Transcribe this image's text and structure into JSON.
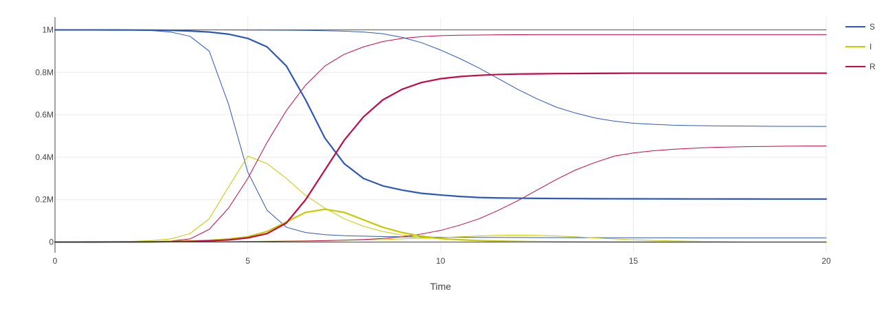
{
  "chart_data": {
    "type": "line",
    "xlabel": "Time",
    "ylabel": "",
    "xlim": [
      0,
      20
    ],
    "ylim": [
      -50000,
      1060000
    ],
    "xticks": [
      0,
      5,
      10,
      15,
      20
    ],
    "xtick_labels": [
      "0",
      "5",
      "10",
      "15",
      "20"
    ],
    "yticks": [
      0,
      200000,
      400000,
      600000,
      800000,
      1000000
    ],
    "ytick_labels": [
      "0",
      "0.2M",
      "0.4M",
      "0.6M",
      "0.8M",
      "1M"
    ],
    "grid": true,
    "legend_position": "top-right",
    "legend": [
      {
        "label": "S",
        "color": "#2c57b3"
      },
      {
        "label": "I",
        "color": "#c8c800"
      },
      {
        "label": "R",
        "color": "#c10a44"
      }
    ],
    "x": [
      0,
      0.5,
      1,
      1.5,
      2,
      2.5,
      3,
      3.5,
      4,
      4.5,
      5,
      5.5,
      6,
      6.5,
      7,
      7.5,
      8,
      8.5,
      9,
      9.5,
      10,
      10.5,
      11,
      11.5,
      12,
      12.5,
      13,
      13.5,
      14,
      14.5,
      15,
      15.5,
      16,
      16.5,
      17,
      17.5,
      18,
      18.5,
      19,
      19.5,
      20
    ],
    "series": [
      {
        "group": "S",
        "color": "#2c57b3",
        "weight": "thin",
        "values": [
          1000000,
          1000000,
          999800,
          999300,
          998500,
          997000,
          990000,
          970000,
          900000,
          650000,
          330000,
          150000,
          70000,
          45000,
          35000,
          30000,
          28000,
          26000,
          25000,
          24000,
          23000,
          22500,
          22000,
          21800,
          21500,
          21300,
          21000,
          20800,
          20600,
          20500,
          20400,
          20300,
          20200,
          20100,
          20000,
          20000,
          20000,
          20000,
          20000,
          20000,
          20000
        ]
      },
      {
        "group": "S",
        "color": "#2c57b3",
        "weight": "thick",
        "values": [
          1000000,
          1000000,
          999900,
          999800,
          999500,
          999000,
          998000,
          995000,
          990000,
          980000,
          960000,
          920000,
          830000,
          670000,
          490000,
          370000,
          300000,
          265000,
          245000,
          230000,
          222000,
          215000,
          210000,
          208000,
          207000,
          206000,
          205500,
          205000,
          204500,
          204200,
          204000,
          203800,
          203600,
          203500,
          203400,
          203300,
          203200,
          203100,
          203000,
          203000,
          203000
        ]
      },
      {
        "group": "S",
        "color": "#2c57b3",
        "weight": "thin",
        "values": [
          1000000,
          1000000,
          1000000,
          1000000,
          1000000,
          1000000,
          1000000,
          1000000,
          1000000,
          999800,
          999500,
          999000,
          998500,
          997500,
          996000,
          994000,
          990000,
          982000,
          965000,
          940000,
          905000,
          865000,
          820000,
          770000,
          720000,
          675000,
          636000,
          608000,
          585000,
          570000,
          560000,
          555000,
          551000,
          549000,
          548000,
          547000,
          546500,
          546000,
          545500,
          545500,
          545000
        ]
      },
      {
        "group": "S",
        "color": "#2c57b3",
        "weight": "thin",
        "values": [
          1000000,
          1000000,
          1000000,
          1000000,
          1000000,
          1000000,
          1000000,
          1000000,
          1000000,
          1000000,
          1000000,
          1000000,
          1000000,
          1000000,
          1000000,
          1000000,
          1000000,
          1000000,
          1000000,
          1000000,
          1000000,
          1000000,
          1000000,
          1000000,
          1000000,
          1000000,
          1000000,
          1000000,
          1000000,
          1000000,
          1000000,
          1000000,
          1000000,
          1000000,
          1000000,
          1000000,
          1000000,
          1000000,
          1000000,
          1000000,
          1000000
        ]
      },
      {
        "group": "I",
        "color": "#c8c800",
        "weight": "thin",
        "values": [
          500,
          800,
          1200,
          2000,
          3500,
          7000,
          15000,
          40000,
          110000,
          260000,
          405000,
          370000,
          300000,
          220000,
          160000,
          110000,
          75000,
          50000,
          33000,
          22000,
          15000,
          10000,
          7000,
          5000,
          3500,
          2500,
          1800,
          1300,
          900,
          600,
          400,
          300,
          200,
          150,
          100,
          80,
          60,
          40,
          30,
          20,
          10
        ]
      },
      {
        "group": "I",
        "color": "#c8c800",
        "weight": "thick",
        "values": [
          500,
          600,
          800,
          1000,
          1500,
          2000,
          3000,
          5000,
          8000,
          15000,
          25000,
          50000,
          95000,
          140000,
          155000,
          140000,
          105000,
          70000,
          45000,
          28000,
          17000,
          11000,
          7000,
          4500,
          3000,
          2000,
          1300,
          900,
          600,
          400,
          300,
          200,
          150,
          100,
          80,
          60,
          40,
          30,
          20,
          10,
          5
        ]
      },
      {
        "group": "I",
        "color": "#c8c800",
        "weight": "thin",
        "values": [
          0,
          0,
          100,
          200,
          400,
          700,
          1000,
          1500,
          2000,
          2500,
          3200,
          4000,
          5000,
          6000,
          7000,
          8500,
          10000,
          12000,
          15000,
          18000,
          21000,
          25000,
          29000,
          32000,
          33000,
          32000,
          29000,
          25000,
          20000,
          15000,
          11000,
          8000,
          6000,
          4000,
          3000,
          2000,
          1500,
          1000,
          700,
          500,
          300
        ]
      },
      {
        "group": "R",
        "color": "#c10a44",
        "weight": "thin",
        "values": [
          0,
          0,
          200,
          500,
          1000,
          2000,
          5000,
          15000,
          60000,
          160000,
          300000,
          470000,
          620000,
          740000,
          830000,
          885000,
          920000,
          945000,
          960000,
          968000,
          973000,
          975000,
          976000,
          977000,
          977500,
          978000,
          978000,
          978000,
          978000,
          978000,
          978000,
          978000,
          978000,
          978000,
          978000,
          978000,
          978000,
          978000,
          978000,
          978000,
          978000
        ]
      },
      {
        "group": "R",
        "color": "#c10a44",
        "weight": "thick",
        "values": [
          0,
          0,
          100,
          300,
          600,
          1000,
          2000,
          3000,
          6000,
          10000,
          20000,
          40000,
          90000,
          200000,
          340000,
          480000,
          590000,
          670000,
          720000,
          752000,
          770000,
          780000,
          786000,
          790000,
          792000,
          793000,
          794000,
          794500,
          795000,
          795500,
          796000,
          796000,
          796000,
          796000,
          796000,
          796000,
          796000,
          796000,
          796000,
          796000,
          796000
        ]
      },
      {
        "group": "R",
        "color": "#c10a44",
        "weight": "thin",
        "values": [
          0,
          0,
          0,
          0,
          0,
          0,
          0,
          500,
          1000,
          1500,
          2000,
          3000,
          4000,
          5000,
          7000,
          9000,
          12000,
          17000,
          25000,
          38000,
          55000,
          80000,
          110000,
          150000,
          195000,
          245000,
          295000,
          340000,
          375000,
          405000,
          420000,
          430000,
          437000,
          442000,
          446000,
          448000,
          450000,
          451000,
          452000,
          453000,
          453000
        ]
      },
      {
        "group": "R",
        "color": "#c10a44",
        "weight": "thin",
        "values": [
          0,
          0,
          0,
          0,
          0,
          0,
          0,
          0,
          0,
          0,
          0,
          0,
          0,
          0,
          0,
          0,
          0,
          0,
          0,
          0,
          0,
          0,
          0,
          0,
          0,
          0,
          0,
          0,
          0,
          0,
          0,
          0,
          0,
          0,
          0,
          0,
          0,
          0,
          0,
          0,
          0
        ]
      }
    ]
  }
}
